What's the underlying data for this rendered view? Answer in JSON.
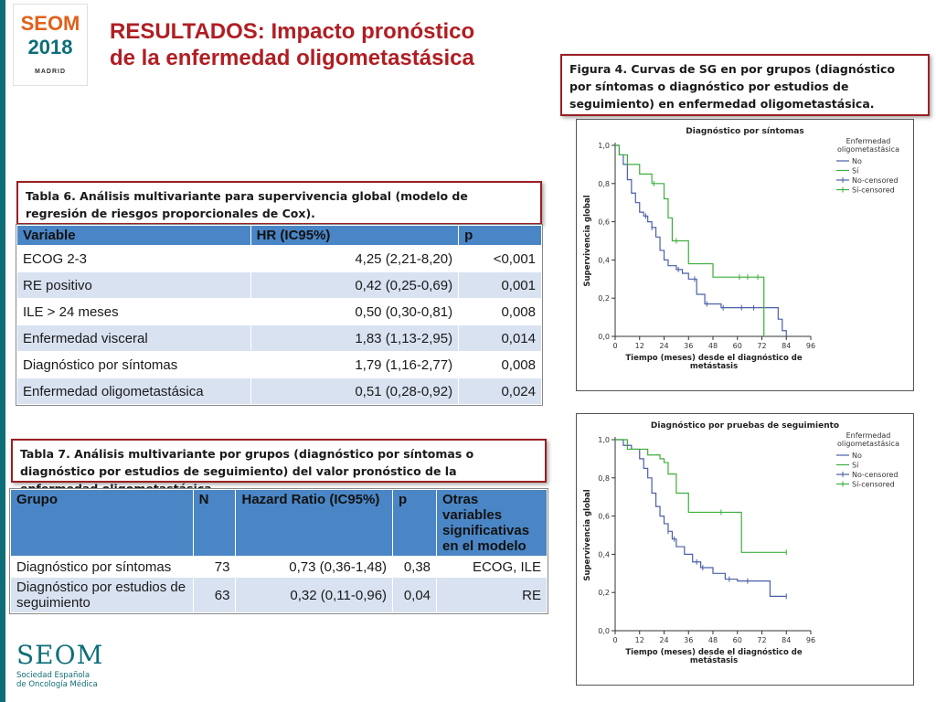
{
  "logo": {
    "line1": "SEOM",
    "line2": "2018",
    "line3": "MADRID"
  },
  "title": {
    "line1": "RESULTADOS:  Impacto pronóstico",
    "line2": "de la enfermedad oligometastásica"
  },
  "figure_caption": "Figura 4. Curvas de SG en por grupos  (diagnóstico por síntomas o diagnóstico por estudios de seguimiento) en enfermedad oligometastásica.",
  "table6": {
    "caption": "Tabla 6. Análisis multivariante para supervivencia global (modelo de regresión de riesgos proporcionales de Cox).",
    "headers": [
      "Variable",
      "HR (IC95%)",
      "p"
    ],
    "rows": [
      [
        "ECOG 2-3",
        "4,25 (2,21-8,20)",
        "<0,001"
      ],
      [
        "RE positivo",
        "0,42 (0,25-0,69)",
        "0,001"
      ],
      [
        "ILE > 24 meses",
        "0,50 (0,30-0,81)",
        "0,008"
      ],
      [
        "Enfermedad visceral",
        "1,83 (1,13-2,95)",
        "0,014"
      ],
      [
        "Diagnóstico por síntomas",
        "1,79 (1,16-2,77)",
        "0,008"
      ],
      [
        "Enfermedad oligometastásica",
        "0,51 (0,28-0,92)",
        "0,024"
      ]
    ]
  },
  "table7": {
    "caption": "Tabla 7. Análisis multivariante por grupos (diagnóstico por síntomas o diagnóstico por estudios de seguimiento) del valor pronóstico de la enfermedad oligometastásica.",
    "headers": [
      "Grupo",
      "N",
      "Hazard Ratio (IC95%)",
      "p",
      "Otras variables significativas en el modelo"
    ],
    "rows": [
      [
        "Diagnóstico por síntomas",
        "73",
        "0,73 (0,36-1,48)",
        "0,38",
        "ECOG, ILE"
      ],
      [
        "Diagnóstico por estudios de seguimiento",
        "63",
        "0,32 (0,11-0,96)",
        "0,04",
        "RE"
      ]
    ]
  },
  "footer": {
    "brand": "SEOM",
    "sub1": "Sociedad Española",
    "sub2": "de Oncología Médica"
  },
  "colors": {
    "no": "#4a5fa8",
    "si": "#3cae3c",
    "accent": "#b01e23",
    "teal": "#0e6e78"
  },
  "chart_data": [
    {
      "type": "line",
      "title": "Diagnóstico por síntomas",
      "xlabel": "Tiempo (meses) desde el diagnóstico de metástasis",
      "ylabel": "Supervivencia global",
      "xlim": [
        0,
        96
      ],
      "ylim": [
        0,
        1
      ],
      "xticks": [
        0,
        12,
        24,
        36,
        48,
        60,
        72,
        84,
        96
      ],
      "yticks": [
        "0,0",
        "0,2",
        "0,4",
        "0,6",
        "0,8",
        "1,0"
      ],
      "legend_title": "Enfermedad oligometastásica",
      "legend_position": "top-right",
      "legend": [
        "No",
        "Sí",
        "No-censored",
        "Sí-censored"
      ],
      "series": [
        {
          "name": "No",
          "step_x": [
            0,
            2,
            4,
            6,
            8,
            10,
            12,
            14,
            16,
            18,
            20,
            22,
            24,
            26,
            28,
            30,
            33,
            36,
            40,
            44,
            48,
            52,
            58,
            64,
            72,
            80,
            82,
            84
          ],
          "step_y": [
            1.0,
            0.95,
            0.9,
            0.82,
            0.75,
            0.7,
            0.65,
            0.63,
            0.6,
            0.57,
            0.52,
            0.45,
            0.4,
            0.37,
            0.37,
            0.35,
            0.33,
            0.3,
            0.22,
            0.17,
            0.17,
            0.15,
            0.15,
            0.15,
            0.15,
            0.09,
            0.03,
            0.0
          ],
          "censored_x": [
            15,
            18,
            31,
            39,
            45,
            53,
            62,
            68
          ]
        },
        {
          "name": "Sí",
          "step_x": [
            0,
            2,
            6,
            12,
            18,
            24,
            26,
            28,
            36,
            40,
            48,
            60,
            70,
            73
          ],
          "step_y": [
            1.0,
            0.95,
            0.9,
            0.85,
            0.8,
            0.72,
            0.62,
            0.5,
            0.38,
            0.38,
            0.31,
            0.31,
            0.31,
            0.0
          ],
          "censored_x": [
            19,
            30,
            61,
            65,
            70
          ]
        }
      ]
    },
    {
      "type": "line",
      "title": "Diagnóstico por pruebas de seguimiento",
      "xlabel": "Tiempo (meses) desde el diagnóstico de metástasis",
      "ylabel": "Supervivencia global",
      "xlim": [
        0,
        96
      ],
      "ylim": [
        0,
        1
      ],
      "xticks": [
        0,
        12,
        24,
        36,
        48,
        60,
        72,
        84,
        96
      ],
      "yticks": [
        "0,0",
        "0,2",
        "0,4",
        "0,6",
        "0,8",
        "1,0"
      ],
      "legend_title": "Enfermedad oligometastásica",
      "legend_position": "top-right",
      "legend": [
        "No",
        "Sí",
        "No-censored",
        "Sí-censored"
      ],
      "series": [
        {
          "name": "No",
          "step_x": [
            0,
            4,
            8,
            12,
            14,
            16,
            18,
            20,
            22,
            24,
            26,
            28,
            30,
            34,
            38,
            42,
            48,
            54,
            60,
            72,
            76,
            84
          ],
          "step_y": [
            1.0,
            0.97,
            0.95,
            0.9,
            0.85,
            0.8,
            0.72,
            0.65,
            0.6,
            0.56,
            0.52,
            0.48,
            0.44,
            0.4,
            0.36,
            0.33,
            0.3,
            0.27,
            0.26,
            0.26,
            0.18,
            0.18
          ],
          "censored_x": [
            26,
            29,
            40,
            43,
            56,
            65,
            84
          ]
        },
        {
          "name": "Sí",
          "step_x": [
            0,
            6,
            12,
            16,
            22,
            24,
            26,
            30,
            36,
            48,
            60,
            62,
            84
          ],
          "step_y": [
            1.0,
            0.95,
            0.95,
            0.92,
            0.9,
            0.88,
            0.82,
            0.72,
            0.62,
            0.62,
            0.62,
            0.41,
            0.41
          ],
          "censored_x": [
            52,
            84
          ]
        }
      ]
    }
  ]
}
